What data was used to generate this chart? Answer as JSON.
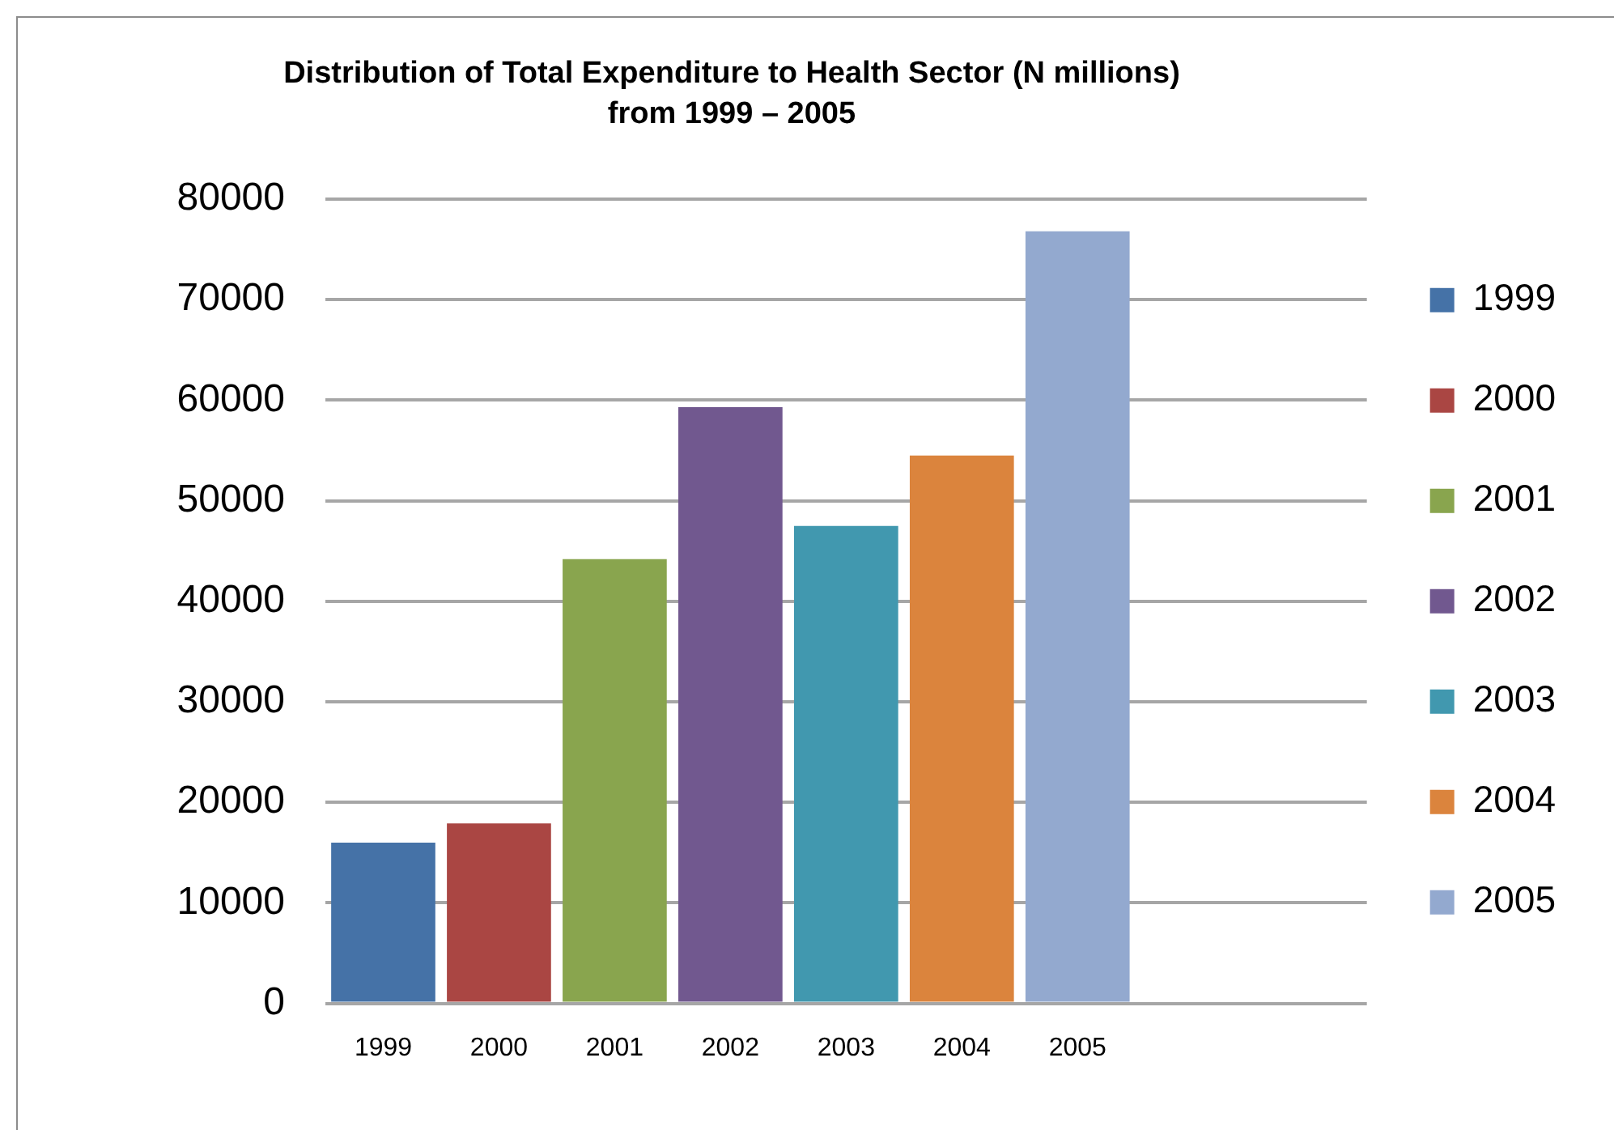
{
  "chart_data": {
    "type": "bar",
    "title": "Distribution of Total Expenditure to Health Sector (N millions) from 1999 – 2005",
    "categories": [
      "1999",
      "2000",
      "2001",
      "2002",
      "2003",
      "2004",
      "2005",
      null,
      null
    ],
    "series": [
      {
        "name": "1999",
        "color": "#4572a7",
        "values": [
          16000,
          null,
          null,
          null,
          null,
          null,
          null,
          null,
          null
        ]
      },
      {
        "name": "2000",
        "color": "#aa4643",
        "values": [
          null,
          17900,
          null,
          null,
          null,
          null,
          null,
          null,
          null
        ]
      },
      {
        "name": "2001",
        "color": "#89a54e",
        "values": [
          null,
          null,
          44200,
          null,
          null,
          null,
          null,
          null,
          null
        ]
      },
      {
        "name": "2002",
        "color": "#71588f",
        "values": [
          null,
          null,
          null,
          59300,
          null,
          null,
          null,
          null,
          null
        ]
      },
      {
        "name": "2003",
        "color": "#4198af",
        "values": [
          null,
          null,
          null,
          null,
          47500,
          null,
          null,
          null,
          null
        ]
      },
      {
        "name": "2004",
        "color": "#db843d",
        "values": [
          null,
          null,
          null,
          null,
          null,
          54500,
          null,
          null,
          null
        ]
      },
      {
        "name": "2005",
        "color": "#93a9cf",
        "values": [
          null,
          null,
          null,
          null,
          null,
          null,
          76800,
          null,
          null
        ]
      }
    ],
    "ylim": [
      0,
      80000
    ],
    "yticks": [
      0,
      10000,
      20000,
      30000,
      40000,
      50000,
      60000,
      70000,
      80000
    ],
    "grid": "y",
    "legend": "right"
  }
}
